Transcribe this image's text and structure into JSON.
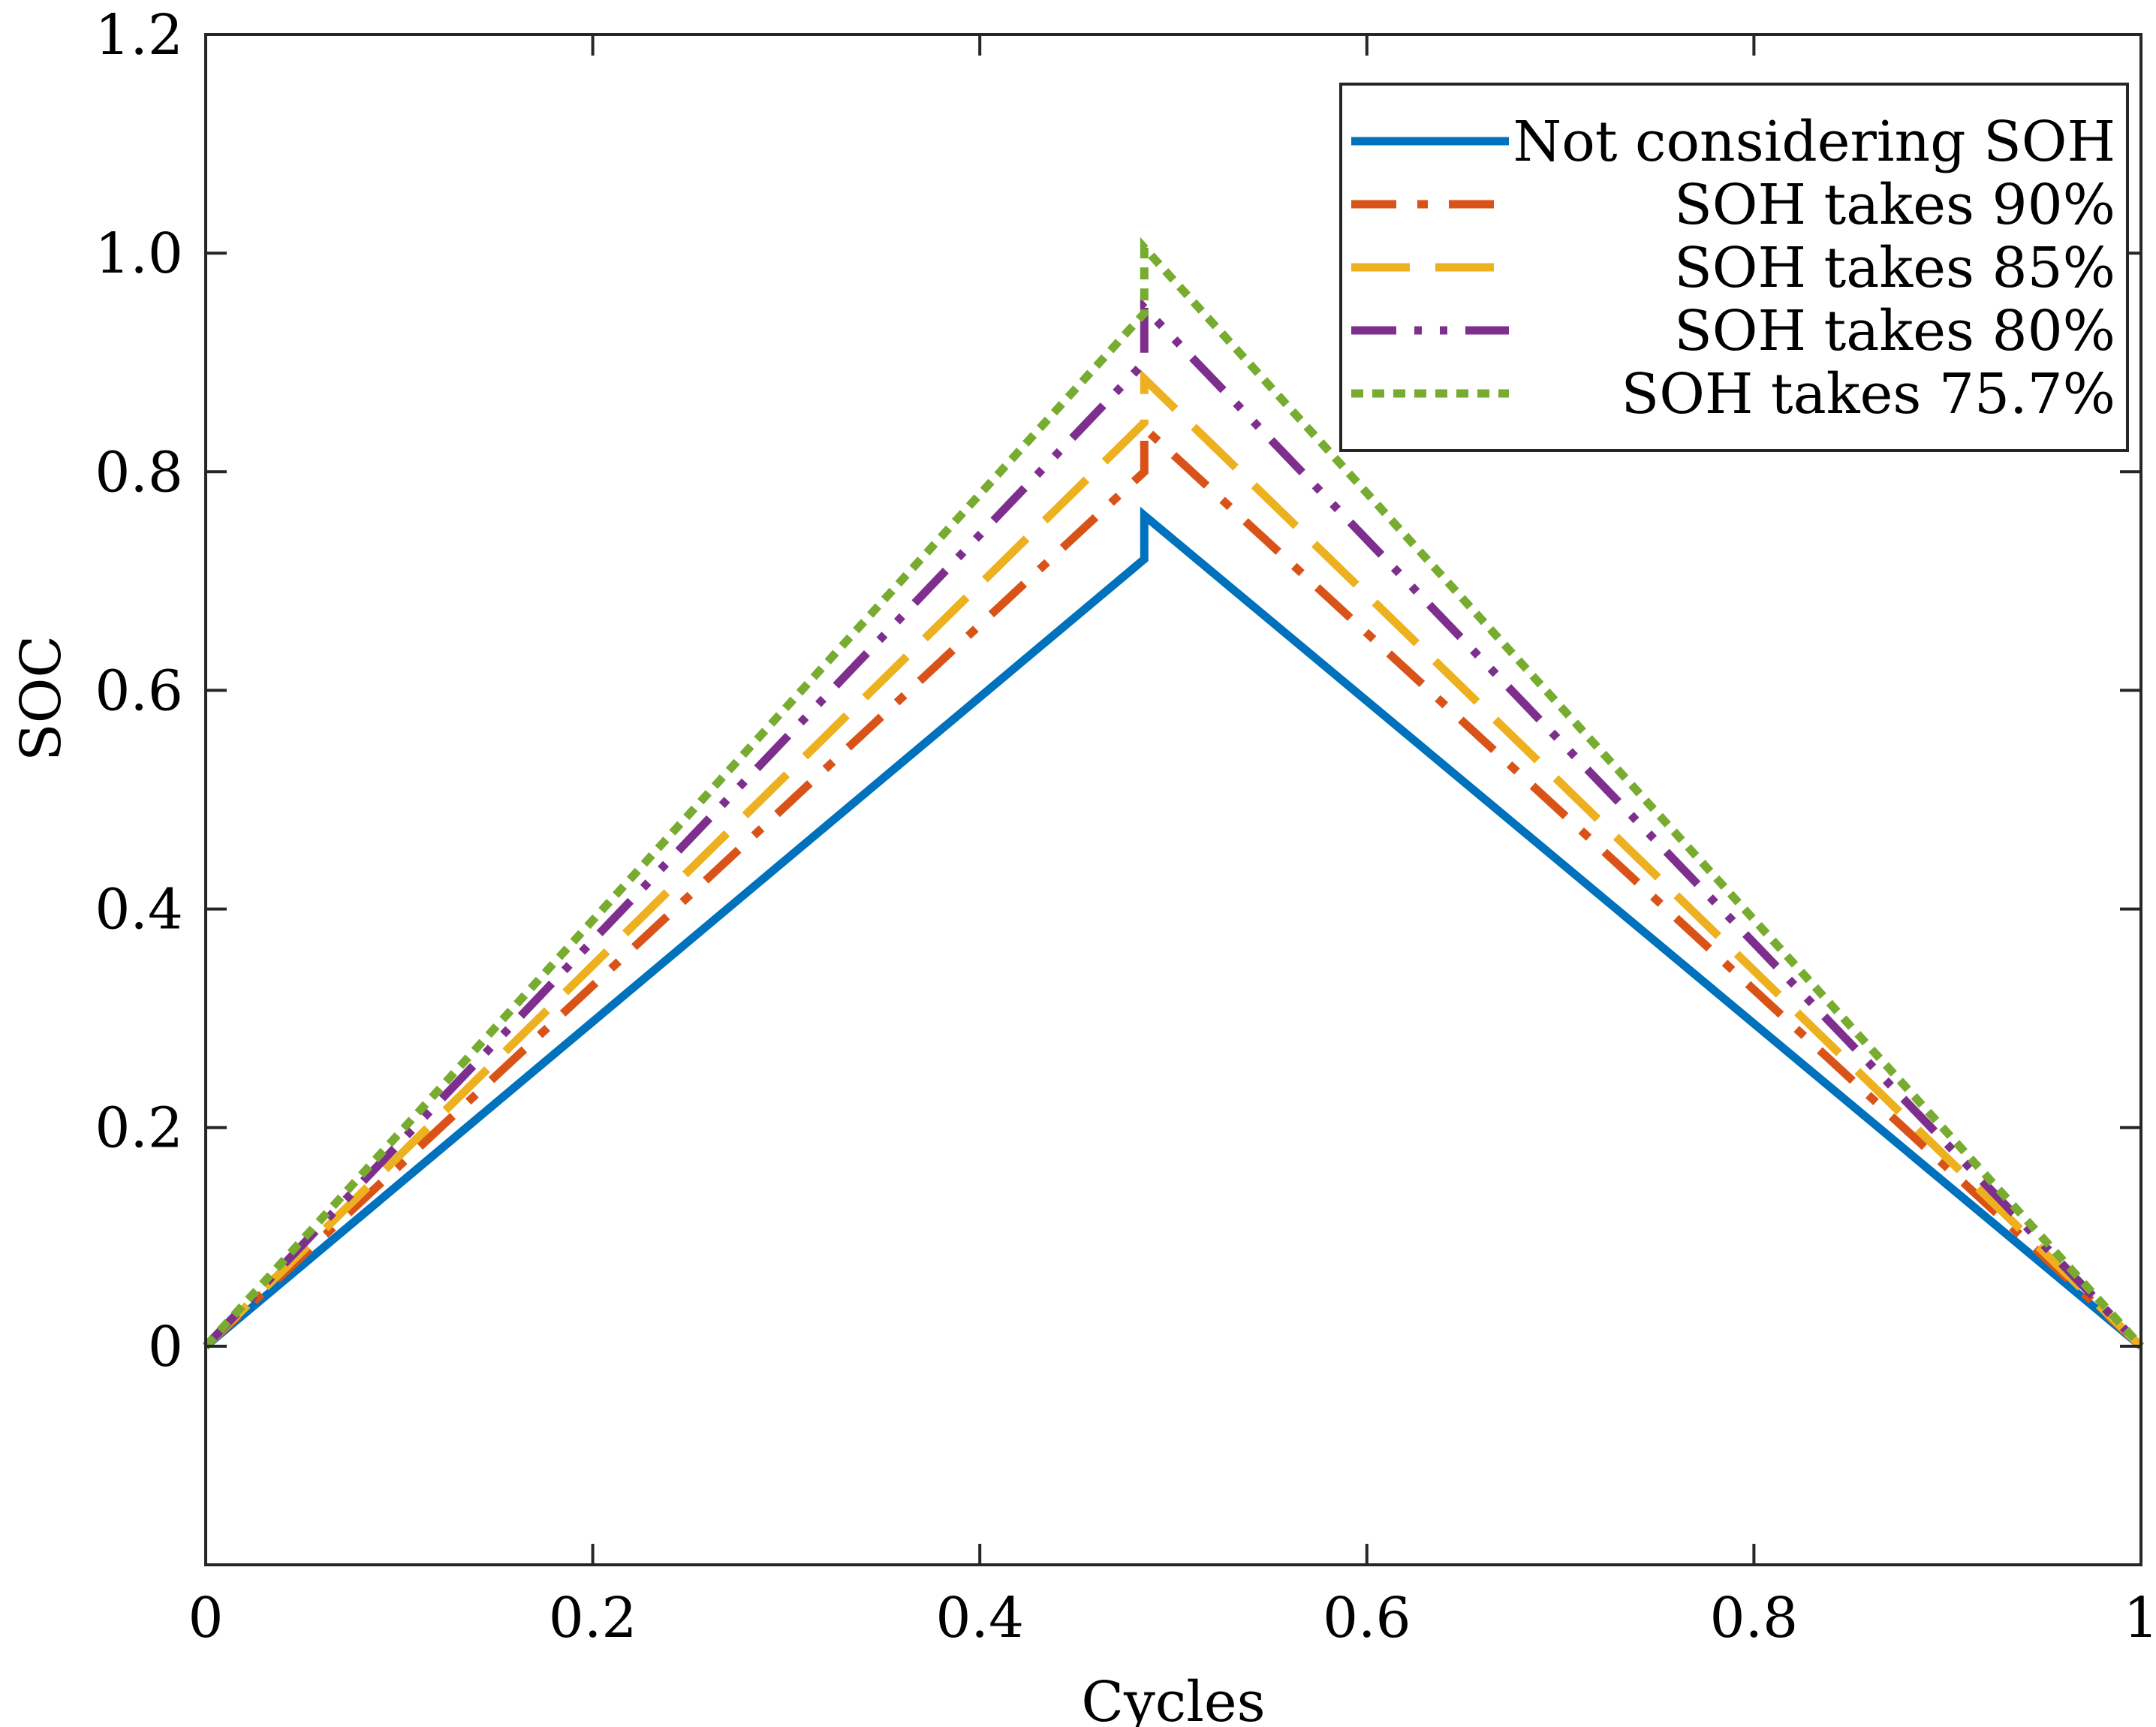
{
  "chart_data": {
    "type": "line",
    "title": "",
    "xlabel": "Cycles",
    "ylabel": "SOC",
    "xlim": [
      0,
      1
    ],
    "ylim": [
      -0.2,
      1.2
    ],
    "xticks": [
      0,
      0.2,
      0.4,
      0.6,
      0.8,
      1
    ],
    "xtick_labels": [
      "0",
      "0.2",
      "0.4",
      "0.6",
      "0.8",
      "1"
    ],
    "yticks": [
      0,
      0.2,
      0.4,
      0.6,
      0.8,
      1.0,
      1.2
    ],
    "ytick_labels": [
      "0",
      "0.2",
      "0.4",
      "0.6",
      "0.8",
      "1.0",
      "1.2"
    ],
    "grid": false,
    "legend_position": "top-right",
    "series": [
      {
        "name": "Not considering SOH",
        "color": "#0072BD",
        "style": "solid",
        "x": [
          0,
          0.485,
          0.485,
          1
        ],
        "y": [
          0,
          0.72,
          0.76,
          0
        ]
      },
      {
        "name": "SOH takes 90%",
        "color": "#D95319",
        "style": "dashdot",
        "x": [
          0,
          0.485,
          0.485,
          1
        ],
        "y": [
          0,
          0.8,
          0.84,
          0
        ]
      },
      {
        "name": "SOH takes 85%",
        "color": "#EDB120",
        "style": "dashed",
        "x": [
          0,
          0.485,
          0.485,
          1
        ],
        "y": [
          0,
          0.845,
          0.885,
          0
        ]
      },
      {
        "name": "SOH takes 80%",
        "color": "#7E2F8E",
        "style": "dashdotdot",
        "x": [
          0,
          0.485,
          0.485,
          1
        ],
        "y": [
          0,
          0.9,
          0.95,
          0
        ]
      },
      {
        "name": "SOH takes 75.7%",
        "color": "#77AC30",
        "style": "dotted",
        "x": [
          0,
          0.485,
          0.485,
          1
        ],
        "y": [
          0,
          0.945,
          1.005,
          0
        ]
      }
    ]
  }
}
